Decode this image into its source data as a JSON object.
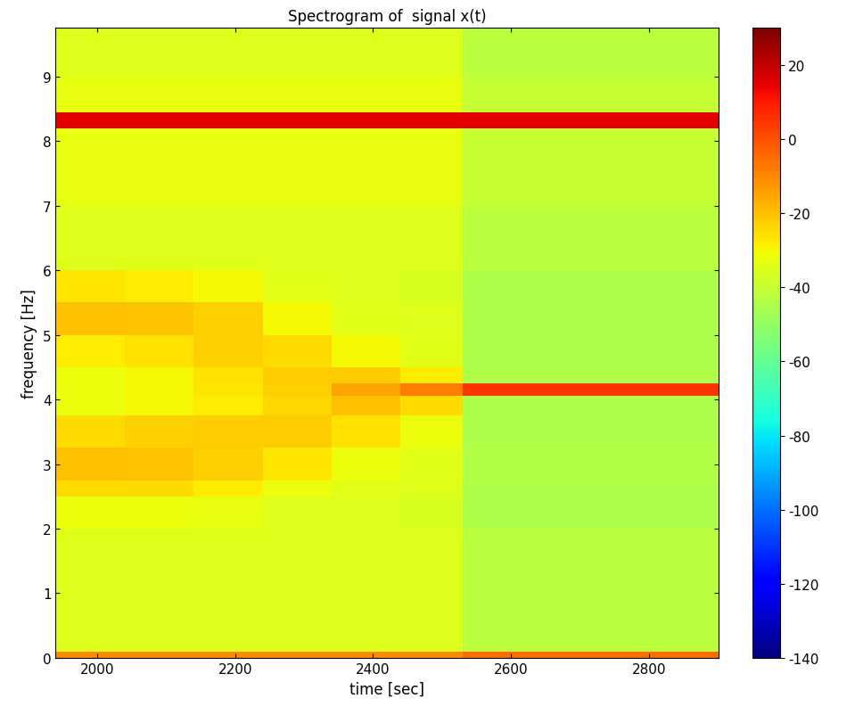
{
  "chart_data": {
    "type": "heatmap",
    "title": "Spectrogram of  signal x(t)",
    "x_label": "time [sec]",
    "y_label": "frequency [Hz]",
    "color": "jet",
    "xlim": [
      1940,
      2900
    ],
    "xticks": [
      2000,
      2200,
      2400,
      2600,
      2800
    ],
    "ylim": [
      0,
      9.75
    ],
    "yticks": [
      0,
      1,
      2,
      3,
      4,
      5,
      6,
      7,
      8,
      9
    ],
    "x_edges": [
      1940,
      2040,
      2140,
      2240,
      2340,
      2440,
      2530,
      2630,
      2730,
      2830,
      2900
    ],
    "y_edges": [
      0,
      0.1,
      0.5,
      1,
      1.5,
      2,
      2.5,
      2.75,
      3.25,
      3.75,
      4.05,
      4.25,
      4.5,
      5,
      5.5,
      6,
      7,
      8.2,
      8.45,
      9,
      9.75
    ],
    "cells": [
      [
        -10,
        -10,
        -10,
        -10,
        -10,
        -10,
        -5,
        -5,
        -5,
        -5
      ],
      [
        -35,
        -35,
        -35,
        -35,
        -35,
        -35,
        -42,
        -42,
        -42,
        -42
      ],
      [
        -35,
        -35,
        -35,
        -35,
        -35,
        -35,
        -42,
        -42,
        -42,
        -42
      ],
      [
        -35,
        -35,
        -35,
        -35,
        -35,
        -35,
        -42,
        -42,
        -42,
        -42
      ],
      [
        -35,
        -35,
        -35,
        -35,
        -35,
        -35,
        -42,
        -42,
        -42,
        -42
      ],
      [
        -32,
        -32,
        -33,
        -35,
        -35,
        -36,
        -45,
        -45,
        -45,
        -45
      ],
      [
        -25,
        -25,
        -28,
        -32,
        -34,
        -35,
        -45,
        -45,
        -45,
        -45
      ],
      [
        -20,
        -21,
        -23,
        -27,
        -32,
        -34,
        -44,
        -44,
        -44,
        -44
      ],
      [
        -25,
        -23,
        -22,
        -22,
        -26,
        -32,
        -45,
        -45,
        -45,
        -45
      ],
      [
        -32,
        -30,
        -28,
        -24,
        -20,
        -25,
        -45,
        -45,
        -45,
        -45
      ],
      [
        -32,
        -30,
        -27,
        -23,
        -15,
        -8,
        5,
        5,
        5,
        5
      ],
      [
        -32,
        -30,
        -26,
        -22,
        -22,
        -28,
        -45,
        -45,
        -45,
        -45
      ],
      [
        -28,
        -26,
        -23,
        -25,
        -30,
        -34,
        -45,
        -45,
        -45,
        -45
      ],
      [
        -20,
        -21,
        -23,
        -30,
        -34,
        -35,
        -45,
        -45,
        -45,
        -45
      ],
      [
        -27,
        -28,
        -30,
        -34,
        -35,
        -36,
        -45,
        -45,
        -45,
        -45
      ],
      [
        -35,
        -35,
        -35,
        -35,
        -35,
        -35,
        -42,
        -42,
        -42,
        -42
      ],
      [
        -33,
        -33,
        -33,
        -33,
        -33,
        -33,
        -40,
        -40,
        -40,
        -40
      ],
      [
        15,
        15,
        15,
        15,
        15,
        15,
        15,
        15,
        15,
        15
      ],
      [
        -33,
        -33,
        -33,
        -33,
        -33,
        -33,
        -40,
        -40,
        -40,
        -40
      ],
      [
        -35,
        -35,
        -35,
        -35,
        -35,
        -35,
        -42,
        -42,
        -42,
        -42
      ]
    ],
    "colorbar": {
      "range": [
        -140,
        30
      ],
      "ticks": [
        -140,
        -120,
        -100,
        -80,
        -60,
        -40,
        -20,
        0,
        20
      ]
    }
  }
}
